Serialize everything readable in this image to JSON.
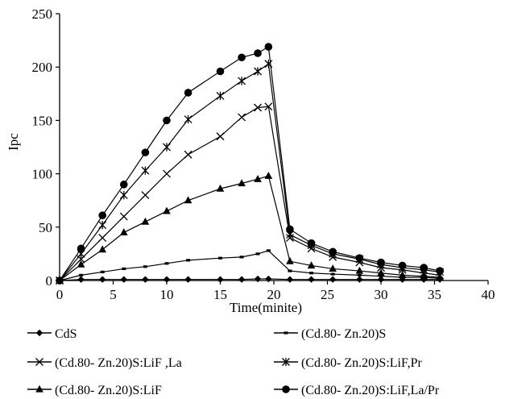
{
  "chart_data": {
    "type": "line",
    "title": "",
    "xlabel": "Time(minite)",
    "ylabel": "Ipc",
    "xlim": [
      0,
      40
    ],
    "ylim": [
      0,
      250
    ],
    "xticks": [
      0,
      5,
      10,
      15,
      20,
      25,
      30,
      35,
      40
    ],
    "yticks": [
      0,
      50,
      100,
      150,
      200,
      250
    ],
    "grid": false,
    "legend_position": "bottom",
    "x": [
      0,
      2,
      4,
      6,
      8,
      10,
      12,
      15,
      17,
      18.5,
      19.5,
      21.5,
      23.5,
      25.5,
      28,
      30,
      32,
      34,
      35.5
    ],
    "series": [
      {
        "name": "CdS",
        "marker": "diamond",
        "color": "#000000",
        "values": [
          0,
          1,
          1,
          1,
          1,
          1,
          1,
          1,
          1,
          1.5,
          1.5,
          1,
          1,
          1,
          1,
          1,
          1,
          1,
          1
        ]
      },
      {
        "name": "(Cd.80- Zn.20)S",
        "marker": "dash",
        "color": "#000000",
        "values": [
          0,
          5,
          8,
          11,
          13,
          16,
          19,
          21,
          22,
          25,
          28,
          9,
          7,
          6,
          5,
          4,
          3,
          3,
          2
        ]
      },
      {
        "name": "(Cd.80- Zn.20)S:LiF ,La",
        "marker": "x",
        "color": "#000000",
        "values": [
          0,
          20,
          40,
          60,
          80,
          100,
          118,
          135,
          153,
          162,
          163,
          40,
          30,
          22,
          17,
          12,
          10,
          7,
          5
        ]
      },
      {
        "name": "(Cd.80- Zn.20)S:LiF,Pr",
        "marker": "asterisk",
        "color": "#000000",
        "values": [
          0,
          25,
          52,
          80,
          103,
          125,
          151,
          173,
          187,
          196,
          203,
          43,
          33,
          25,
          20,
          15,
          12,
          10,
          8
        ]
      },
      {
        "name": "(Cd.80- Zn.20)S:LiF",
        "marker": "triangle",
        "color": "#000000",
        "values": [
          0,
          15,
          29,
          45,
          55,
          65,
          75,
          86,
          91,
          95,
          98,
          18,
          14,
          11,
          9,
          7,
          5,
          4,
          3
        ]
      },
      {
        "name": "(Cd.80- Zn.20)S:LiF,La/Pr",
        "marker": "circle",
        "color": "#000000",
        "values": [
          0,
          30,
          61,
          90,
          120,
          150,
          176,
          196,
          209,
          213,
          219,
          48,
          35,
          27,
          21,
          17,
          14,
          12,
          9
        ]
      }
    ]
  }
}
